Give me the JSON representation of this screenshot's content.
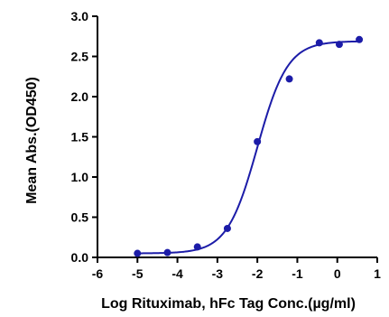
{
  "chart_data": {
    "type": "scatter",
    "xlabel": "Log Rituximab, hFc Tag Conc.(µg/ml)",
    "ylabel": "Mean Abs.(OD450)",
    "xlim": [
      -6,
      1
    ],
    "ylim": [
      0.0,
      3.0
    ],
    "x_ticks": [
      -6,
      -5,
      -4,
      -3,
      -2,
      -1,
      0,
      1
    ],
    "x_tick_labels": [
      "-6",
      "-5",
      "-4",
      "-3",
      "-2",
      "-1",
      "0",
      "1"
    ],
    "y_ticks": [
      0.0,
      0.5,
      1.0,
      1.5,
      2.0,
      2.5,
      3.0
    ],
    "y_tick_labels": [
      "0.0",
      "0.5",
      "1.0",
      "1.5",
      "2.0",
      "2.5",
      "3.0"
    ],
    "grid": false,
    "legend": "none",
    "series_color": "#1c1ca8",
    "points": {
      "x": [
        -5.0,
        -4.25,
        -3.5,
        -2.75,
        -2.0,
        -1.2,
        -0.45,
        0.05,
        0.55
      ],
      "y": [
        0.05,
        0.06,
        0.13,
        0.36,
        1.44,
        2.22,
        2.67,
        2.65,
        2.71
      ]
    },
    "fit": {
      "model": "four-parameter logistic",
      "bottom": 0.05,
      "top": 2.69,
      "log_ec50": -2.0,
      "hill_slope": 1.15,
      "x_range": [
        -5.0,
        0.6
      ]
    }
  }
}
